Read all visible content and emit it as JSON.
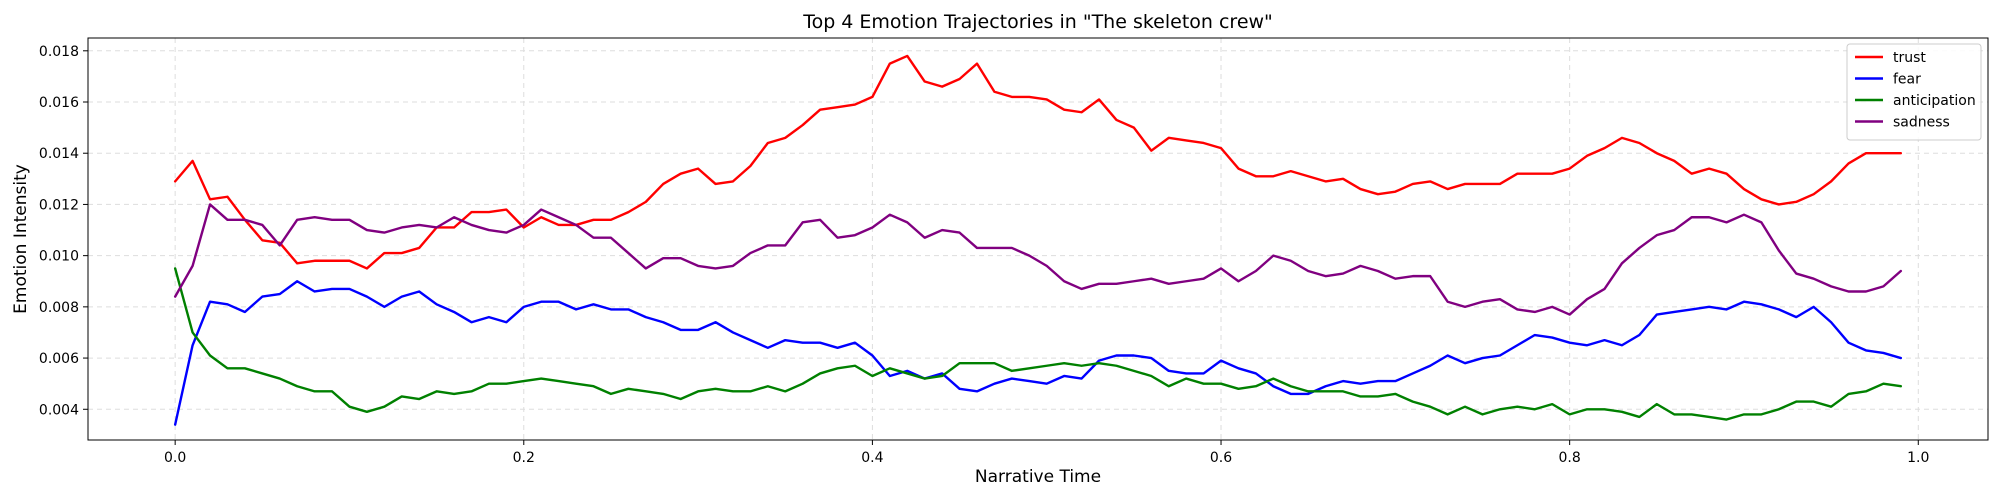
{
  "chart_data": {
    "type": "line",
    "title": "Top 4 Emotion Trajectories in \"The skeleton crew\"",
    "xlabel": "Narrative Time",
    "ylabel": "Emotion Intensity",
    "xlim": [
      -0.05,
      1.04
    ],
    "ylim": [
      0.0028,
      0.0185
    ],
    "x_ticks": [
      0.0,
      0.2,
      0.4,
      0.6,
      0.8,
      1.0
    ],
    "x_tick_labels": [
      "0.0",
      "0.2",
      "0.4",
      "0.6",
      "0.8",
      "1.0"
    ],
    "y_ticks": [
      0.004,
      0.006,
      0.008,
      0.01,
      0.012,
      0.014,
      0.016,
      0.018
    ],
    "y_tick_labels": [
      "0.004",
      "0.006",
      "0.008",
      "0.010",
      "0.012",
      "0.014",
      "0.016",
      "0.018"
    ],
    "grid": true,
    "legend_position": "top-right",
    "x_start": 0.0,
    "x_step": 0.01,
    "series": [
      {
        "name": "trust",
        "color": "#ff0000",
        "values": [
          0.0129,
          0.0137,
          0.0122,
          0.0123,
          0.0114,
          0.0106,
          0.0105,
          0.0097,
          0.0098,
          0.0098,
          0.0098,
          0.0095,
          0.0101,
          0.0101,
          0.0103,
          0.0111,
          0.0111,
          0.0117,
          0.0117,
          0.0118,
          0.0111,
          0.0115,
          0.0112,
          0.0112,
          0.0114,
          0.0114,
          0.0117,
          0.0121,
          0.0128,
          0.0132,
          0.0134,
          0.0128,
          0.0129,
          0.0135,
          0.0144,
          0.0146,
          0.0151,
          0.0157,
          0.0158,
          0.0159,
          0.0162,
          0.0175,
          0.0178,
          0.0168,
          0.0166,
          0.0169,
          0.0175,
          0.0164,
          0.0162,
          0.0162,
          0.0161,
          0.0157,
          0.0156,
          0.0161,
          0.0153,
          0.015,
          0.0141,
          0.0146,
          0.0145,
          0.0144,
          0.0142,
          0.0134,
          0.0131,
          0.0131,
          0.0133,
          0.0131,
          0.0129,
          0.013,
          0.0126,
          0.0124,
          0.0125,
          0.0128,
          0.0129,
          0.0126,
          0.0128,
          0.0128,
          0.0128,
          0.0132,
          0.0132,
          0.0132,
          0.0134,
          0.0139,
          0.0142,
          0.0146,
          0.0144,
          0.014,
          0.0137,
          0.0132,
          0.0134,
          0.0132,
          0.0126,
          0.0122,
          0.012,
          0.0121,
          0.0124,
          0.0129,
          0.0136,
          0.014,
          0.014,
          0.014
        ]
      },
      {
        "name": "fear",
        "color": "#0000ff",
        "values": [
          0.0034,
          0.0065,
          0.0082,
          0.0081,
          0.0078,
          0.0084,
          0.0085,
          0.009,
          0.0086,
          0.0087,
          0.0087,
          0.0084,
          0.008,
          0.0084,
          0.0086,
          0.0081,
          0.0078,
          0.0074,
          0.0076,
          0.0074,
          0.008,
          0.0082,
          0.0082,
          0.0079,
          0.0081,
          0.0079,
          0.0079,
          0.0076,
          0.0074,
          0.0071,
          0.0071,
          0.0074,
          0.007,
          0.0067,
          0.0064,
          0.0067,
          0.0066,
          0.0066,
          0.0064,
          0.0066,
          0.0061,
          0.0053,
          0.0055,
          0.0052,
          0.0054,
          0.0048,
          0.0047,
          0.005,
          0.0052,
          0.0051,
          0.005,
          0.0053,
          0.0052,
          0.0059,
          0.0061,
          0.0061,
          0.006,
          0.0055,
          0.0054,
          0.0054,
          0.0059,
          0.0056,
          0.0054,
          0.0049,
          0.0046,
          0.0046,
          0.0049,
          0.0051,
          0.005,
          0.0051,
          0.0051,
          0.0054,
          0.0057,
          0.0061,
          0.0058,
          0.006,
          0.0061,
          0.0065,
          0.0069,
          0.0068,
          0.0066,
          0.0065,
          0.0067,
          0.0065,
          0.0069,
          0.0077,
          0.0078,
          0.0079,
          0.008,
          0.0079,
          0.0082,
          0.0081,
          0.0079,
          0.0076,
          0.008,
          0.0074,
          0.0066,
          0.0063,
          0.0062,
          0.006
        ]
      },
      {
        "name": "anticipation",
        "color": "#008000",
        "values": [
          0.0095,
          0.007,
          0.0061,
          0.0056,
          0.0056,
          0.0054,
          0.0052,
          0.0049,
          0.0047,
          0.0047,
          0.0041,
          0.0039,
          0.0041,
          0.0045,
          0.0044,
          0.0047,
          0.0046,
          0.0047,
          0.005,
          0.005,
          0.0051,
          0.0052,
          0.0051,
          0.005,
          0.0049,
          0.0046,
          0.0048,
          0.0047,
          0.0046,
          0.0044,
          0.0047,
          0.0048,
          0.0047,
          0.0047,
          0.0049,
          0.0047,
          0.005,
          0.0054,
          0.0056,
          0.0057,
          0.0053,
          0.0056,
          0.0054,
          0.0052,
          0.0053,
          0.0058,
          0.0058,
          0.0058,
          0.0055,
          0.0056,
          0.0057,
          0.0058,
          0.0057,
          0.0058,
          0.0057,
          0.0055,
          0.0053,
          0.0049,
          0.0052,
          0.005,
          0.005,
          0.0048,
          0.0049,
          0.0052,
          0.0049,
          0.0047,
          0.0047,
          0.0047,
          0.0045,
          0.0045,
          0.0046,
          0.0043,
          0.0041,
          0.0038,
          0.0041,
          0.0038,
          0.004,
          0.0041,
          0.004,
          0.0042,
          0.0038,
          0.004,
          0.004,
          0.0039,
          0.0037,
          0.0042,
          0.0038,
          0.0038,
          0.0037,
          0.0036,
          0.0038,
          0.0038,
          0.004,
          0.0043,
          0.0043,
          0.0041,
          0.0046,
          0.0047,
          0.005,
          0.0049
        ]
      },
      {
        "name": "sadness",
        "color": "#800080",
        "values": [
          0.0084,
          0.0096,
          0.012,
          0.0114,
          0.0114,
          0.0112,
          0.0104,
          0.0114,
          0.0115,
          0.0114,
          0.0114,
          0.011,
          0.0109,
          0.0111,
          0.0112,
          0.0111,
          0.0115,
          0.0112,
          0.011,
          0.0109,
          0.0112,
          0.0118,
          0.0115,
          0.0112,
          0.0107,
          0.0107,
          0.0101,
          0.0095,
          0.0099,
          0.0099,
          0.0096,
          0.0095,
          0.0096,
          0.0101,
          0.0104,
          0.0104,
          0.0113,
          0.0114,
          0.0107,
          0.0108,
          0.0111,
          0.0116,
          0.0113,
          0.0107,
          0.011,
          0.0109,
          0.0103,
          0.0103,
          0.0103,
          0.01,
          0.0096,
          0.009,
          0.0087,
          0.0089,
          0.0089,
          0.009,
          0.0091,
          0.0089,
          0.009,
          0.0091,
          0.0095,
          0.009,
          0.0094,
          0.01,
          0.0098,
          0.0094,
          0.0092,
          0.0093,
          0.0096,
          0.0094,
          0.0091,
          0.0092,
          0.0092,
          0.0082,
          0.008,
          0.0082,
          0.0083,
          0.0079,
          0.0078,
          0.008,
          0.0077,
          0.0083,
          0.0087,
          0.0097,
          0.0103,
          0.0108,
          0.011,
          0.0115,
          0.0115,
          0.0113,
          0.0116,
          0.0113,
          0.0102,
          0.0093,
          0.0091,
          0.0088,
          0.0086,
          0.0086,
          0.0088,
          0.0094
        ]
      }
    ]
  }
}
